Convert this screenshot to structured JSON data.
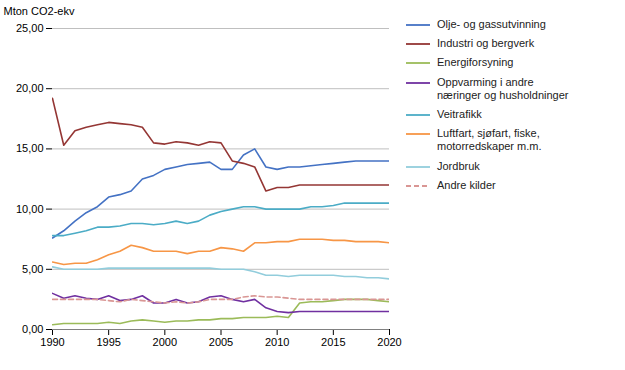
{
  "chart_data": {
    "type": "line",
    "ylabel": "Mton CO2-ekv",
    "xlim": [
      1990,
      2020
    ],
    "xticks": [
      1990,
      1995,
      2000,
      2005,
      2010,
      2015,
      2020
    ],
    "ylim": [
      0,
      25
    ],
    "yticks": [
      {
        "value": 0,
        "label": "0,00"
      },
      {
        "value": 5,
        "label": "5,00"
      },
      {
        "value": 10,
        "label": "10,00"
      },
      {
        "value": 15,
        "label": "15,00"
      },
      {
        "value": 20,
        "label": "20,00"
      },
      {
        "value": 25,
        "label": "25,00"
      }
    ],
    "grid": "y",
    "legend": "right",
    "x": [
      1990,
      1991,
      1992,
      1993,
      1994,
      1995,
      1996,
      1997,
      1998,
      1999,
      2000,
      2001,
      2002,
      2003,
      2004,
      2005,
      2006,
      2007,
      2008,
      2009,
      2010,
      2011,
      2012,
      2013,
      2014,
      2015,
      2016,
      2017,
      2018,
      2019,
      2020
    ],
    "series": [
      {
        "name": "Olje- og gassutvinning",
        "color": "#4472C4",
        "line_style": "solid",
        "values": [
          7.6,
          8.2,
          9.0,
          9.7,
          10.2,
          11.0,
          11.2,
          11.5,
          12.5,
          12.8,
          13.3,
          13.5,
          13.7,
          13.8,
          13.9,
          13.3,
          13.3,
          14.5,
          15.0,
          13.5,
          13.3,
          13.5,
          13.5,
          13.6,
          13.7,
          13.8,
          13.9,
          14.0,
          14.0,
          14.0,
          14.0
        ]
      },
      {
        "name": "Industri og bergverk",
        "color": "#943634",
        "line_style": "solid",
        "values": [
          19.2,
          15.3,
          16.5,
          16.8,
          17.0,
          17.2,
          17.1,
          17.0,
          16.8,
          15.5,
          15.4,
          15.6,
          15.5,
          15.3,
          15.6,
          15.5,
          14.0,
          13.8,
          13.5,
          11.5,
          11.8,
          11.8,
          12.0,
          12.0,
          12.0,
          12.0,
          12.0,
          12.0,
          12.0,
          12.0,
          12.0
        ]
      },
      {
        "name": "Energiforsyning",
        "color": "#9BBB59",
        "line_style": "solid",
        "values": [
          0.4,
          0.5,
          0.5,
          0.5,
          0.5,
          0.6,
          0.5,
          0.7,
          0.8,
          0.7,
          0.6,
          0.7,
          0.7,
          0.8,
          0.8,
          0.9,
          0.9,
          1.0,
          1.0,
          1.0,
          1.1,
          1.0,
          2.2,
          2.3,
          2.3,
          2.4,
          2.5,
          2.5,
          2.5,
          2.4,
          2.3
        ]
      },
      {
        "name": "Oppvarming i andre\nnæringer og husholdninger",
        "color": "#7030A0",
        "line_style": "solid",
        "values": [
          3.0,
          2.6,
          2.8,
          2.6,
          2.5,
          2.8,
          2.4,
          2.5,
          2.8,
          2.2,
          2.2,
          2.5,
          2.2,
          2.3,
          2.7,
          2.8,
          2.5,
          2.3,
          2.5,
          1.8,
          1.5,
          1.4,
          1.5,
          1.5,
          1.5,
          1.5,
          1.5,
          1.5,
          1.5,
          1.5,
          1.5
        ]
      },
      {
        "name": "Veitrafikk",
        "color": "#4BACC6",
        "line_style": "solid",
        "values": [
          7.8,
          7.8,
          8.0,
          8.2,
          8.5,
          8.5,
          8.6,
          8.8,
          8.8,
          8.7,
          8.8,
          9.0,
          8.8,
          9.0,
          9.5,
          9.8,
          10.0,
          10.2,
          10.2,
          10.0,
          10.0,
          10.0,
          10.0,
          10.2,
          10.2,
          10.3,
          10.5,
          10.5,
          10.5,
          10.5,
          10.5
        ]
      },
      {
        "name": "Luftfart, sjøfart, fiske,\nmotorredskaper m.m.",
        "color": "#F79646",
        "line_style": "solid",
        "values": [
          5.6,
          5.4,
          5.5,
          5.5,
          5.8,
          6.2,
          6.5,
          7.0,
          6.8,
          6.5,
          6.5,
          6.5,
          6.3,
          6.5,
          6.5,
          6.8,
          6.7,
          6.5,
          7.2,
          7.2,
          7.3,
          7.3,
          7.5,
          7.5,
          7.5,
          7.4,
          7.4,
          7.3,
          7.3,
          7.3,
          7.2
        ]
      },
      {
        "name": "Jordbruk",
        "color": "#92CDDC",
        "line_style": "solid",
        "values": [
          5.2,
          5.0,
          5.0,
          5.0,
          5.0,
          5.1,
          5.1,
          5.1,
          5.1,
          5.1,
          5.1,
          5.1,
          5.1,
          5.1,
          5.1,
          5.0,
          5.0,
          5.0,
          4.8,
          4.5,
          4.5,
          4.4,
          4.5,
          4.5,
          4.5,
          4.5,
          4.4,
          4.4,
          4.3,
          4.3,
          4.2
        ]
      },
      {
        "name": "Andre kilder",
        "color": "#D99694",
        "line_style": "dashed",
        "values": [
          2.5,
          2.5,
          2.5,
          2.5,
          2.5,
          2.4,
          2.3,
          2.5,
          2.4,
          2.3,
          2.2,
          2.3,
          2.2,
          2.3,
          2.5,
          2.5,
          2.5,
          2.7,
          2.8,
          2.7,
          2.7,
          2.6,
          2.5,
          2.5,
          2.5,
          2.5,
          2.5,
          2.5,
          2.5,
          2.5,
          2.5
        ]
      }
    ]
  }
}
